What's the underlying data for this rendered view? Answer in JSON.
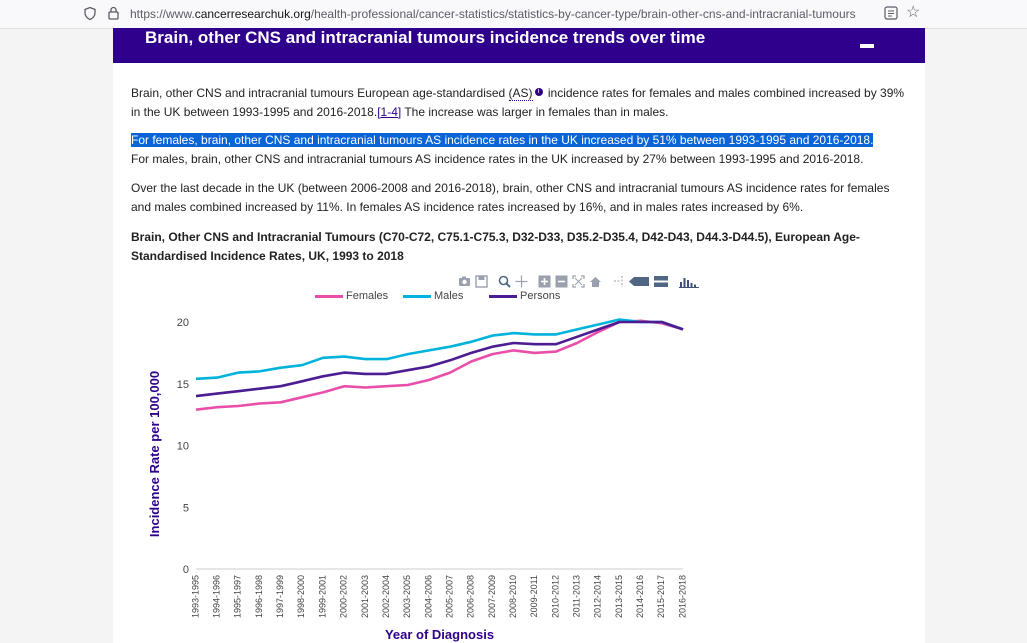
{
  "browser": {
    "url_prefix": "https://www.",
    "url_host": "cancerresearchuk.org",
    "url_path": "/health-professional/cancer-statistics/statistics-by-cancer-type/brain-other-cns-and-intracranial-tumours"
  },
  "header": {
    "title": "Brain, other CNS and intracranial tumours incidence trends over time"
  },
  "para1": {
    "a": "Brain, other CNS and intracranial tumours European age-standardised ",
    "as_link": "(AS)",
    "b": " incidence rates for females and males combined increased by 39% in the UK between 1993-1995 and 2016-2018.",
    "ref": "[1-4]",
    "c": " The increase was larger in females than in males."
  },
  "para2": {
    "highlighted": "For females, brain, other CNS and intracranial tumours AS incidence rates in the UK increased by 51% between 1993-1995 and 2016-2018.",
    "rest": "For males, brain, other CNS and intracranial tumours AS incidence rates in the UK increased by 27% between 1993-1995 and 2016-2018."
  },
  "para3": "Over the last decade in the UK (between 2006-2008 and 2016-2018), brain, other CNS and intracranial tumours AS incidence rates for females and males combined increased by 11%. In females AS incidence rates increased by 16%, and in males rates increased by 6%.",
  "chart_heading": "Brain, Other CNS and Intracranial Tumours (C70-C72, C75.1-C75.3, D32-D33, D35.2-D35.4, D42-D43, D44.3-D44.5), European Age-Standardised Incidence Rates, UK, 1993 to 2018",
  "colors": {
    "header": "#2e008b",
    "females": "#e94fa9",
    "males": "#00b3dc",
    "persons": "#4b1c92"
  },
  "modebar_icons": [
    "camera-icon",
    "save-icon",
    "zoom-icon",
    "pan-icon",
    "zoom-in-icon",
    "zoom-out-icon",
    "autoscale-icon",
    "home-icon",
    "spike-lines-icon",
    "hover-closest-icon",
    "hover-compare-icon",
    "plotly-logo-icon"
  ],
  "chart_data": {
    "type": "line",
    "xlabel": "Year of Diagnosis",
    "ylabel": "Incidence Rate per 100,000",
    "ylim": [
      0,
      20
    ],
    "yticks": [
      0,
      5,
      10,
      15,
      20
    ],
    "categories": [
      "1993-1995",
      "1994-1996",
      "1995-1997",
      "1996-1998",
      "1997-1999",
      "1998-2000",
      "1999-2001",
      "2000-2002",
      "2001-2003",
      "2002-2004",
      "2003-2005",
      "2004-2006",
      "2005-2007",
      "2006-2008",
      "2007-2009",
      "2008-2010",
      "2009-2011",
      "2010-2012",
      "2011-2013",
      "2012-2014",
      "2013-2015",
      "2014-2016",
      "2015-2017",
      "2016-2018"
    ],
    "series": [
      {
        "name": "Females",
        "values": [
          12.9,
          13.1,
          13.2,
          13.4,
          13.5,
          13.9,
          14.3,
          14.8,
          14.7,
          14.8,
          14.9,
          15.3,
          15.9,
          16.8,
          17.4,
          17.7,
          17.5,
          17.6,
          18.3,
          19.2,
          20.0,
          20.1,
          19.9,
          19.4
        ]
      },
      {
        "name": "Males",
        "values": [
          15.4,
          15.5,
          15.9,
          16.0,
          16.3,
          16.5,
          17.1,
          17.2,
          17.0,
          17.0,
          17.4,
          17.7,
          18.0,
          18.4,
          18.9,
          19.1,
          19.0,
          19.0,
          19.4,
          19.8,
          20.2,
          20.0,
          20.0,
          19.4
        ]
      },
      {
        "name": "Persons",
        "values": [
          14.0,
          14.2,
          14.4,
          14.6,
          14.8,
          15.2,
          15.6,
          15.9,
          15.8,
          15.8,
          16.1,
          16.4,
          16.9,
          17.5,
          18.0,
          18.3,
          18.2,
          18.2,
          18.8,
          19.4,
          20.0,
          20.0,
          20.0,
          19.4
        ]
      }
    ],
    "legend": "top",
    "grid": false
  }
}
